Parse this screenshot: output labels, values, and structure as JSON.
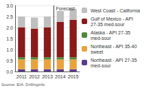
{
  "chart_data": {
    "type": "bar",
    "stacked": true,
    "grid": true,
    "legend": "right",
    "categories": [
      "2011",
      "2012",
      "2013",
      "2014",
      "2015"
    ],
    "series": [
      {
        "name": "Northeast - API 27-35 med-sour",
        "color": "#5b3a8c",
        "values": [
          0.1,
          0.1,
          0.1,
          0.1,
          0.1
        ]
      },
      {
        "name": "Northeast - API 35-40 sweet",
        "color": "#e8a33d",
        "values": [
          0.45,
          0.45,
          0.45,
          0.45,
          0.45
        ]
      },
      {
        "name": "Alaska - API 27-35 med-sour",
        "color": "#4f8a3a",
        "values": [
          0.1,
          0.1,
          0.1,
          0.1,
          0.1
        ]
      },
      {
        "name": "Gulf of Mexico - API 27-35 med-sour",
        "color": "#8b1a1a",
        "values": [
          1.35,
          1.3,
          1.35,
          1.6,
          1.7
        ]
      },
      {
        "name": "West Coast - California",
        "color": "#bfbfbf",
        "values": [
          0.5,
          0.5,
          0.5,
          0.5,
          0.5
        ]
      }
    ],
    "ylim": [
      0,
      3
    ],
    "yticks": [
      {
        "value": 0,
        "label": "0.0"
      },
      {
        "value": 0.5,
        "label": "0.5"
      },
      {
        "value": 1,
        "label": "1.0"
      },
      {
        "value": 1.5,
        "label": "1.5"
      },
      {
        "value": 2,
        "label": "2.0"
      },
      {
        "value": 2.5,
        "label": "2.5"
      },
      {
        "value": 3,
        "label": "3.0"
      }
    ],
    "annotations": [
      {
        "text": "Forecast",
        "x": "2014"
      }
    ],
    "source": "Source: EIA, Drillinginfo"
  }
}
